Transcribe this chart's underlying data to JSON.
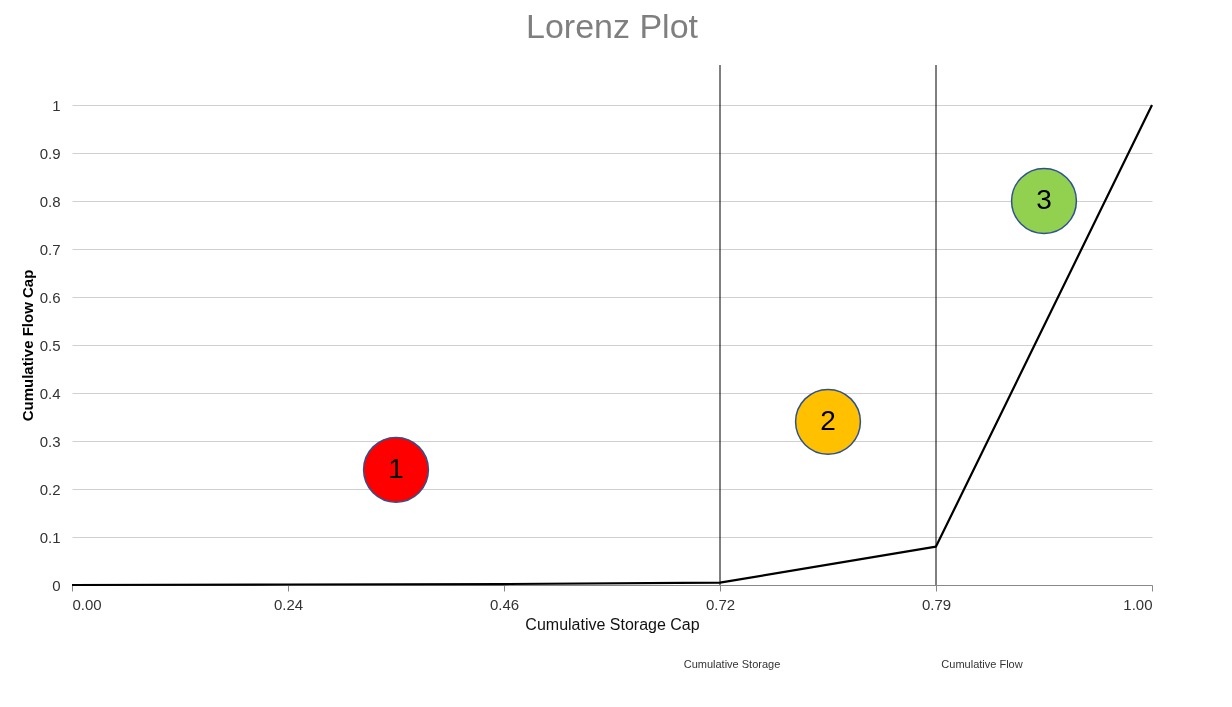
{
  "chart_data": {
    "type": "line",
    "title": "Lorenz Plot",
    "xlabel": "Cumulative Storage Cap",
    "ylabel": "Cumulative Flow Cap",
    "categories": [
      "0.00",
      "0.24",
      "0.46",
      "0.72",
      "0.79",
      "1.00"
    ],
    "series": [
      {
        "color": "#000000",
        "values": [
          0,
          0.001,
          0.002,
          0.005,
          0.08,
          1
        ]
      }
    ],
    "ylim": [
      0,
      1
    ],
    "yticks": [
      0,
      0.1,
      0.2,
      0.3,
      0.4,
      0.5,
      0.6,
      0.7,
      0.8,
      0.9,
      1
    ],
    "grid": "y",
    "marker": "none",
    "line_style": "solid",
    "ref_lines": [
      {
        "axis": "x",
        "value": "0.72",
        "color": "#000000"
      },
      {
        "axis": "x",
        "value": "0.79",
        "color": "#000000"
      }
    ],
    "annotations": [
      "1",
      "2",
      "3",
      "Cumulative Storage",
      "Cumulative Flow"
    ]
  }
}
